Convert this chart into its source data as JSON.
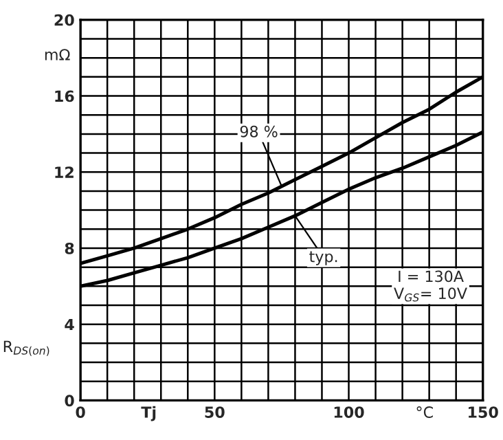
{
  "chart_data": {
    "type": "line",
    "xlabel": "Tj",
    "ylabel": "R$_{DS(on)}$",
    "annotations": [
      {
        "text": "98 %",
        "x": 75,
        "y": 11.25
      },
      {
        "text": "typ.",
        "x": 80,
        "y": 9.7
      },
      "mΩ",
      "°C",
      "I = 130A\nV$_{GS}$= 10V"
    ],
    "x": [
      0,
      10,
      20,
      30,
      40,
      50,
      60,
      70,
      80,
      90,
      100,
      110,
      120,
      130,
      140,
      150
    ],
    "series": [
      {
        "color": "#000000",
        "values": [
          7.2,
          7.6,
          8.0,
          8.5,
          9.0,
          9.6,
          10.3,
          10.9,
          11.6,
          12.3,
          13.0,
          13.8,
          14.6,
          15.3,
          16.2,
          17.0
        ]
      },
      {
        "color": "#000000",
        "values": [
          6.0,
          6.3,
          6.7,
          7.1,
          7.5,
          8.0,
          8.5,
          9.1,
          9.7,
          10.4,
          11.1,
          11.7,
          12.2,
          12.8,
          13.4,
          14.1
        ]
      }
    ],
    "xlim": [
      0,
      150
    ],
    "ylim": [
      0,
      20
    ],
    "xticks": [
      0,
      {
        "value": 10,
        "label": null
      },
      {
        "value": 20,
        "label": null
      },
      {
        "value": 30,
        "label": null
      },
      {
        "value": 40,
        "label": null
      },
      50,
      {
        "value": 60,
        "label": null
      },
      {
        "value": 70,
        "label": null
      },
      {
        "value": 80,
        "label": null
      },
      {
        "value": 90,
        "label": null
      },
      100,
      {
        "value": 110,
        "label": null
      },
      {
        "value": 120,
        "label": null
      },
      {
        "value": 130,
        "label": null
      },
      {
        "value": 140,
        "label": null
      },
      150
    ],
    "yticks": [
      0,
      {
        "value": 1,
        "label": null
      },
      {
        "value": 2,
        "label": null
      },
      {
        "value": 3,
        "label": null
      },
      4,
      {
        "value": 5,
        "label": null
      },
      {
        "value": 6,
        "label": null
      },
      {
        "value": 7,
        "label": null
      },
      8,
      {
        "value": 9,
        "label": null
      },
      {
        "value": 10,
        "label": null
      },
      {
        "value": 11,
        "label": null
      },
      12,
      {
        "value": 13,
        "label": null
      },
      {
        "value": 14,
        "label": null
      },
      {
        "value": 15,
        "label": null
      },
      16,
      {
        "value": 17,
        "label": null
      },
      {
        "value": 18,
        "label": null
      },
      {
        "value": 19,
        "label": null
      },
      20
    ],
    "grid": true,
    "legend": false,
    "marker": "none",
    "line_style": "solid"
  }
}
